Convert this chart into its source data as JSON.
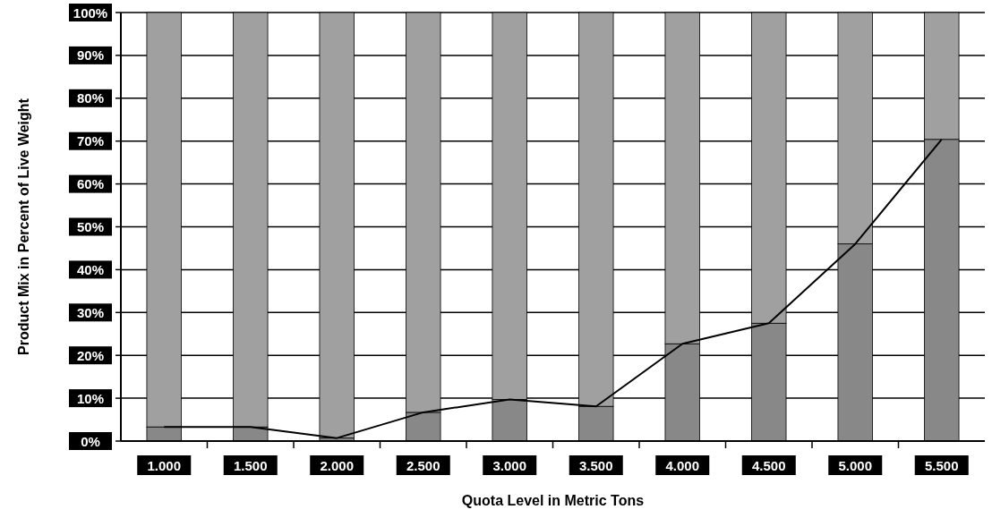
{
  "chart_data": {
    "type": "bar",
    "stacked": true,
    "xlabel": "Quota Level in Metric Tons",
    "ylabel": "Product Mix in Percent of Live Weight",
    "categories": [
      "1.000",
      "1.500",
      "2.000",
      "2.500",
      "3.000",
      "3.500",
      "4.000",
      "4.500",
      "5.000",
      "5.500"
    ],
    "series": [
      {
        "color": "#888888",
        "values": [
          3.3,
          3.3,
          0.7,
          6.7,
          9.7,
          8.1,
          22.7,
          27.5,
          46,
          70.4
        ]
      },
      {
        "color": "#a0a0a0",
        "values": [
          96.7,
          96.7,
          99.3,
          93.3,
          90.3,
          91.9,
          77.3,
          72.5,
          54,
          29.6
        ]
      },
      {
        "type": "line",
        "color": "#000000",
        "values": [
          3.3,
          3.3,
          0.7,
          6.7,
          9.7,
          8.1,
          22.7,
          27.5,
          46,
          70.4
        ]
      }
    ],
    "ylim": [
      0,
      100
    ],
    "yticks": [
      {
        "value": 0,
        "label": "0%"
      },
      {
        "value": 10,
        "label": "10%"
      },
      {
        "value": 20,
        "label": "20%"
      },
      {
        "value": 30,
        "label": "30%"
      },
      {
        "value": 40,
        "label": "40%"
      },
      {
        "value": 50,
        "label": "50%"
      },
      {
        "value": 60,
        "label": "60%"
      },
      {
        "value": 70,
        "label": "70%"
      },
      {
        "value": 80,
        "label": "80%"
      },
      {
        "value": 90,
        "label": "90%"
      },
      {
        "value": 100,
        "label": "100%"
      }
    ],
    "grid": "y"
  }
}
